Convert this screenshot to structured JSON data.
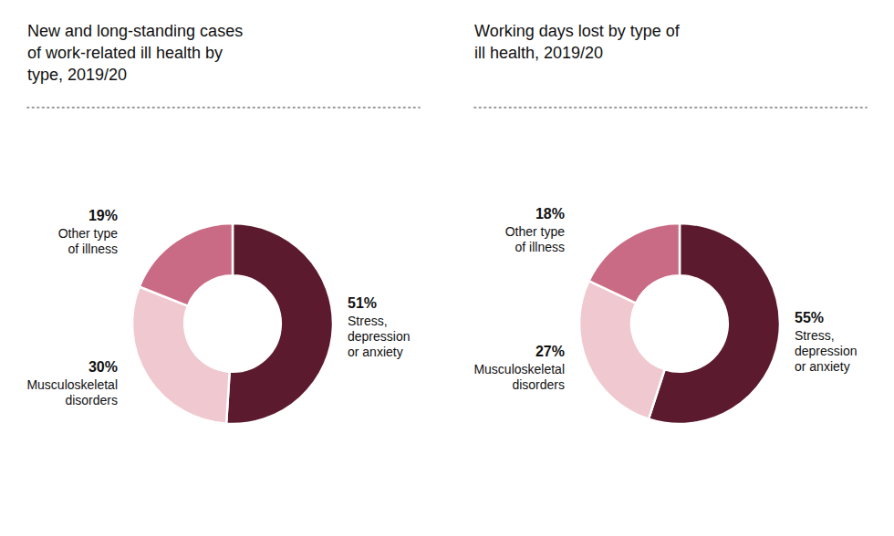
{
  "chart_data": [
    {
      "type": "donut",
      "title": "New and long-standing cases\nof work-related ill health by\ntype, 2019/20",
      "categories": [
        "Stress,\ndepression\nor anxiety",
        "Musculoskeletal\ndisorders",
        "Other type\nof illness"
      ],
      "values": [
        51,
        30,
        19
      ],
      "value_labels": [
        "51%",
        "30%",
        "19%"
      ],
      "colors": [
        "#5c1a2e",
        "#f0c8d0",
        "#c96b85"
      ],
      "data_labels": true
    },
    {
      "type": "donut",
      "title": "Working days lost by type of\nill health, 2019/20",
      "categories": [
        "Stress,\ndepression\nor anxiety",
        "Musculoskeletal\ndisorders",
        "Other type\nof illness"
      ],
      "values": [
        55,
        27,
        18
      ],
      "value_labels": [
        "55%",
        "27%",
        "18%"
      ],
      "colors": [
        "#5c1a2e",
        "#f0c8d0",
        "#c96b85"
      ],
      "data_labels": true
    }
  ]
}
